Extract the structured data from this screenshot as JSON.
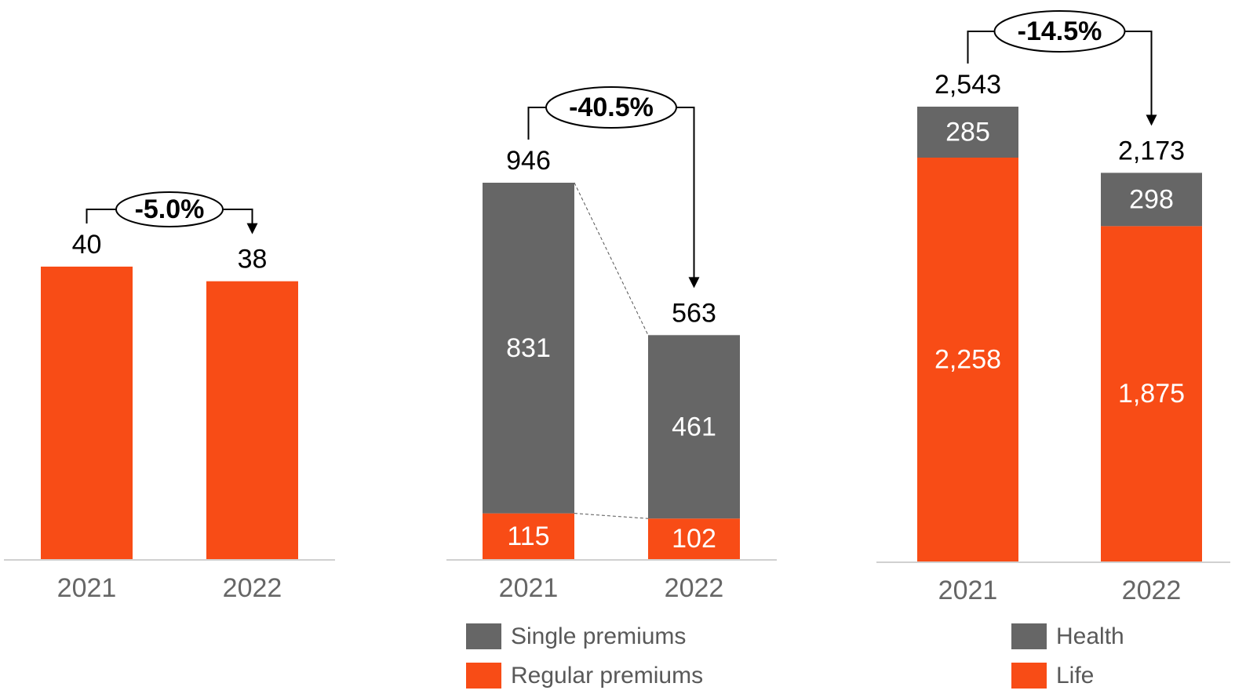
{
  "chart_data": [
    {
      "type": "bar",
      "categories": [
        "2021",
        "2022"
      ],
      "values": [
        40,
        38
      ],
      "color": "#f84c16",
      "annotation": "-5.0%"
    },
    {
      "type": "stacked_bar",
      "categories": [
        "2021",
        "2022"
      ],
      "series": [
        {
          "name": "Regular premiums",
          "color": "#f84c16",
          "values": [
            115,
            102
          ]
        },
        {
          "name": "Single premiums",
          "color": "#666666",
          "values": [
            831,
            461
          ]
        }
      ],
      "totals": [
        946,
        563
      ],
      "annotation": "-40.5%"
    },
    {
      "type": "stacked_bar",
      "categories": [
        "2021",
        "2022"
      ],
      "series": [
        {
          "name": "Life",
          "color": "#f84c16",
          "values": [
            2258,
            1875
          ],
          "value_labels": [
            "2,258",
            "1,875"
          ]
        },
        {
          "name": "Health",
          "color": "#666666",
          "values": [
            285,
            298
          ]
        }
      ],
      "totals": [
        2543,
        2173
      ],
      "total_labels": [
        "2,543",
        "2,173"
      ],
      "annotation": "-14.5%"
    }
  ]
}
